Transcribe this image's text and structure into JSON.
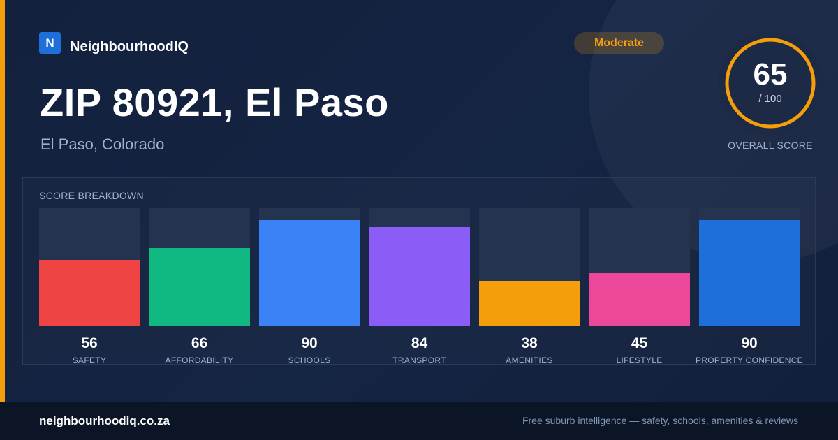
{
  "brand": {
    "logo_letter": "N",
    "name": "NeighbourhoodIQ"
  },
  "header": {
    "title": "ZIP 80921, El Paso",
    "subtitle": "El Paso, Colorado"
  },
  "rating": {
    "label": "Moderate",
    "color": "#f59e0b"
  },
  "overall": {
    "score": "65",
    "max_label": "/ 100",
    "label": "OVERALL SCORE",
    "fraction": 0.65
  },
  "breakdown_title": "SCORE BREAKDOWN",
  "chart_data": {
    "type": "bar",
    "title": "SCORE BREAKDOWN",
    "categories": [
      "SAFETY",
      "AFFORDABILITY",
      "SCHOOLS",
      "TRANSPORT",
      "AMENITIES",
      "LIFESTYLE",
      "PROPERTY CONFIDENCE"
    ],
    "values": [
      56,
      66,
      90,
      84,
      38,
      45,
      90
    ],
    "colors": [
      "#ef4444",
      "#10b981",
      "#3b82f6",
      "#8b5cf6",
      "#f59e0b",
      "#ec4899",
      "#1e6fd9"
    ],
    "ylim": [
      0,
      100
    ],
    "xlabel": "",
    "ylabel": "",
    "grid": false,
    "legend": "none"
  },
  "footer": {
    "domain": "neighbourhoodiq.co.za",
    "tagline": "Free suburb intelligence — safety, schools, amenities & reviews"
  }
}
